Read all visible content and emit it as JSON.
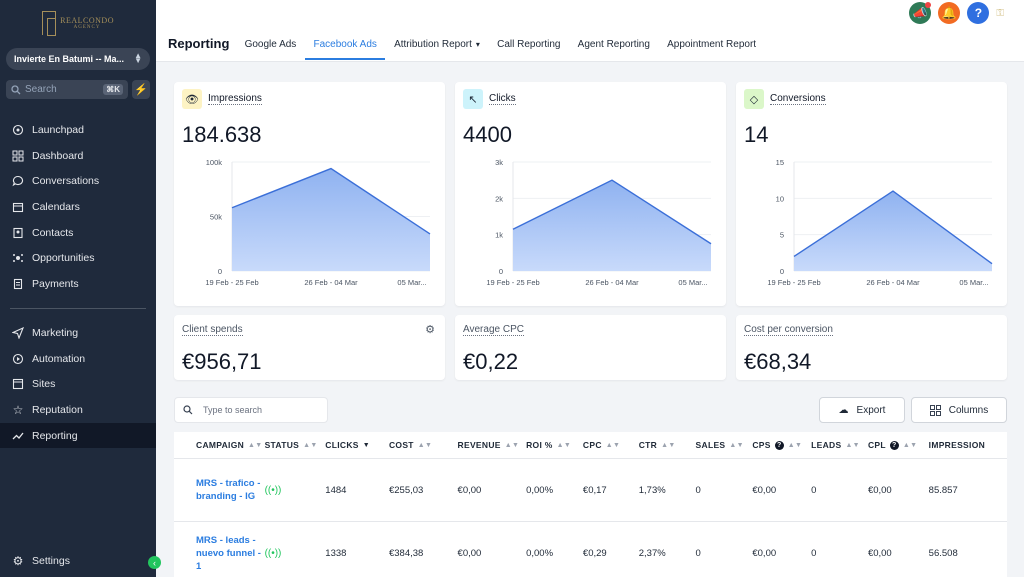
{
  "logo": {
    "brand": "REALCONDO",
    "sub": "AGENCY"
  },
  "sidebar": {
    "account": "Invierte En Batumi -- Ma...",
    "search_placeholder": "Search",
    "search_shortcut": "⌘K",
    "items": [
      {
        "label": "Launchpad",
        "icon": "rocket-icon"
      },
      {
        "label": "Dashboard",
        "icon": "grid-icon"
      },
      {
        "label": "Conversations",
        "icon": "chat-icon"
      },
      {
        "label": "Calendars",
        "icon": "calendar-icon"
      },
      {
        "label": "Contacts",
        "icon": "contacts-icon"
      },
      {
        "label": "Opportunities",
        "icon": "funnel-icon"
      },
      {
        "label": "Payments",
        "icon": "receipt-icon"
      }
    ],
    "items2": [
      {
        "label": "Marketing",
        "icon": "send-icon"
      },
      {
        "label": "Automation",
        "icon": "automation-icon"
      },
      {
        "label": "Sites",
        "icon": "sites-icon"
      },
      {
        "label": "Reputation",
        "icon": "star-icon"
      },
      {
        "label": "Reporting",
        "icon": "trend-icon",
        "active": true
      }
    ],
    "settings": "Settings"
  },
  "header": {
    "title": "Reporting",
    "tabs": [
      "Google Ads",
      "Facebook Ads",
      "Attribution Report",
      "Call Reporting",
      "Agent Reporting",
      "Appointment Report"
    ],
    "active_tab": "Facebook Ads"
  },
  "cards": [
    {
      "label": "Impressions",
      "value": "184.638",
      "icon": "eye-icon",
      "badge_color": "#fdf3c4"
    },
    {
      "label": "Clicks",
      "value": "4400",
      "icon": "cursor-icon",
      "badge_color": "#cdf3fb"
    },
    {
      "label": "Conversions",
      "value": "14",
      "icon": "diamond-icon",
      "badge_color": "#dbf7c9"
    }
  ],
  "chart_data": [
    {
      "type": "area",
      "x": [
        "19 Feb - 25 Feb",
        "26 Feb - 04 Mar",
        "05 Mar..."
      ],
      "values": [
        58000,
        94000,
        34000
      ],
      "yticks": [
        "100k",
        "50k",
        "0"
      ],
      "ylim": [
        0,
        100000
      ]
    },
    {
      "type": "area",
      "x": [
        "19 Feb - 25 Feb",
        "26 Feb - 04 Mar",
        "05 Mar..."
      ],
      "values": [
        1150,
        2500,
        750
      ],
      "yticks": [
        "3k",
        "2k",
        "1k",
        "0"
      ],
      "ylim": [
        0,
        3000
      ]
    },
    {
      "type": "area",
      "x": [
        "19 Feb - 25 Feb",
        "26 Feb - 04 Mar",
        "05 Mar..."
      ],
      "values": [
        2,
        11,
        1
      ],
      "yticks": [
        "15",
        "10",
        "5",
        "0"
      ],
      "ylim": [
        0,
        15
      ]
    }
  ],
  "spend": [
    {
      "label": "Client spends",
      "value": "€956,71"
    },
    {
      "label": "Average CPC",
      "value": "€0,22"
    },
    {
      "label": "Cost per conversion",
      "value": "€68,34"
    }
  ],
  "table": {
    "search_placeholder": "Type to search",
    "export_label": "Export",
    "columns_label": "Columns",
    "headers": [
      "CAMPAIGN",
      "STATUS",
      "CLICKS",
      "COST",
      "REVENUE",
      "ROI %",
      "CPC",
      "CTR",
      "SALES",
      "CPS",
      "LEADS",
      "CPL",
      "IMPRESSION"
    ],
    "rows": [
      [
        "MRS - trafico - branding - IG",
        "",
        "1484",
        "€255,03",
        "€0,00",
        "0,00%",
        "€0,17",
        "1,73%",
        "0",
        "€0,00",
        "0",
        "€0,00",
        "85.857"
      ],
      [
        "MRS - leads - nuevo funnel - 1",
        "",
        "1338",
        "€384,38",
        "€0,00",
        "0,00%",
        "€0,29",
        "2,37%",
        "0",
        "€0,00",
        "0",
        "€0,00",
        "56.508"
      ]
    ]
  }
}
